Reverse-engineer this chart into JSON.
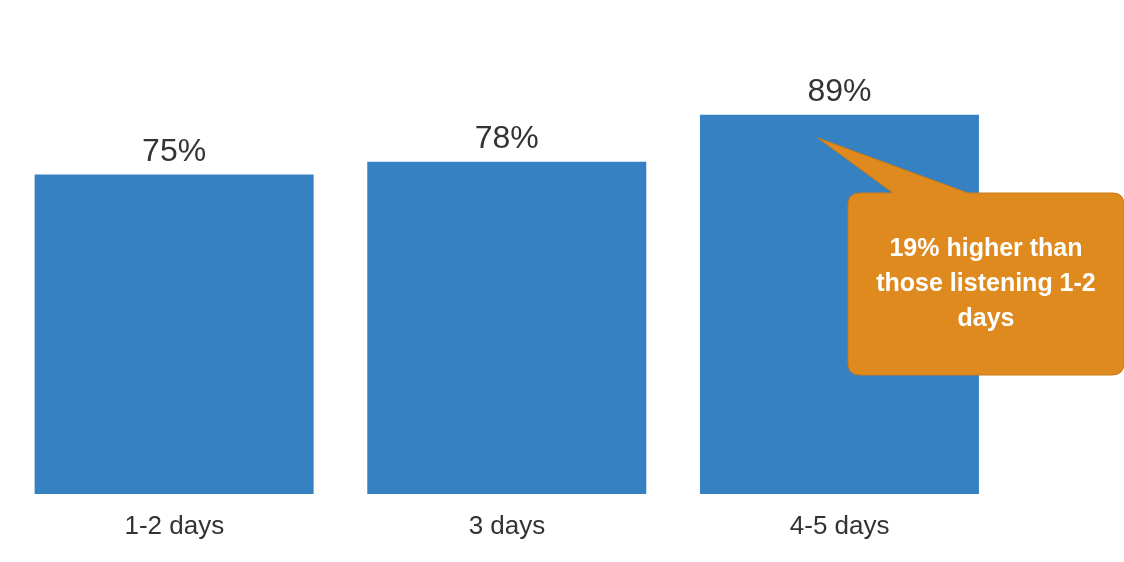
{
  "chart_data": {
    "type": "bar",
    "categories": [
      "1-2 days",
      "3 days",
      "4-5 days"
    ],
    "values": [
      75,
      78,
      89
    ],
    "value_labels": [
      "75%",
      "78%",
      "89%"
    ],
    "color": "#3581c1",
    "tick_labels": "x",
    "grid": false,
    "annotations": [
      "19% higher than those listening 1-2 days"
    ]
  }
}
